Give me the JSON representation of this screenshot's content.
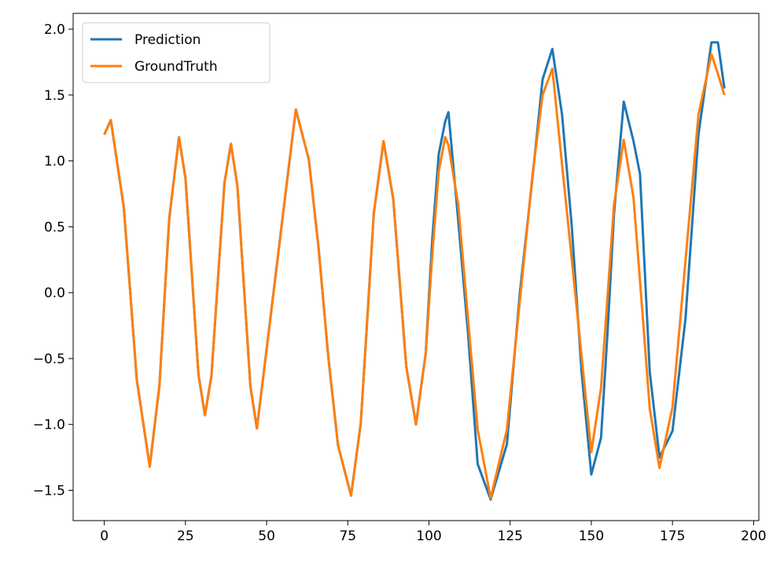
{
  "chart_data": {
    "type": "line",
    "x": [
      0,
      2,
      6,
      8,
      10,
      14,
      17,
      19,
      20,
      23,
      25,
      27,
      29,
      31,
      33,
      35,
      37,
      39,
      41,
      43,
      45,
      47,
      50,
      53,
      56,
      59,
      63,
      66,
      69,
      72,
      76,
      79,
      81,
      83,
      86,
      89,
      91,
      93,
      96,
      99,
      101,
      103,
      105,
      106,
      109,
      112,
      115,
      119,
      124,
      128,
      132,
      135,
      138,
      141,
      144,
      147,
      150,
      153,
      155,
      157,
      160,
      163,
      165,
      168,
      171,
      175,
      179,
      183,
      187,
      189,
      191
    ],
    "series": [
      {
        "name": "Prediction",
        "color": "#1f77b4",
        "values": [
          1.2,
          1.31,
          0.65,
          0.0,
          -0.66,
          -1.32,
          -0.7,
          0.15,
          0.56,
          1.18,
          0.87,
          0.13,
          -0.62,
          -0.93,
          -0.63,
          0.1,
          0.83,
          1.13,
          0.81,
          0.05,
          -0.71,
          -1.03,
          -0.43,
          0.18,
          0.79,
          1.39,
          1.01,
          0.34,
          -0.49,
          -1.16,
          -1.54,
          -0.99,
          -0.2,
          0.6,
          1.15,
          0.71,
          0.08,
          -0.56,
          -1.0,
          -0.46,
          0.4,
          1.05,
          1.3,
          1.37,
          0.55,
          -0.3,
          -1.3,
          -1.57,
          -1.15,
          0.0,
          0.9,
          1.62,
          1.85,
          1.35,
          0.5,
          -0.6,
          -1.38,
          -1.1,
          -0.3,
          0.6,
          1.45,
          1.15,
          0.9,
          -0.6,
          -1.25,
          -1.05,
          -0.2,
          1.2,
          1.9,
          1.9,
          1.55
        ]
      },
      {
        "name": "GroundTruth",
        "color": "#ff7f0e",
        "values": [
          1.2,
          1.31,
          0.65,
          0.0,
          -0.66,
          -1.32,
          -0.7,
          0.15,
          0.56,
          1.18,
          0.87,
          0.13,
          -0.62,
          -0.93,
          -0.63,
          0.1,
          0.83,
          1.13,
          0.81,
          0.05,
          -0.71,
          -1.03,
          -0.43,
          0.18,
          0.79,
          1.39,
          1.01,
          0.34,
          -0.49,
          -1.16,
          -1.54,
          -0.99,
          -0.2,
          0.6,
          1.15,
          0.71,
          0.08,
          -0.56,
          -1.0,
          -0.46,
          0.28,
          0.92,
          1.18,
          1.12,
          0.67,
          -0.19,
          -1.04,
          -1.56,
          -1.04,
          -0.06,
          0.92,
          1.5,
          1.7,
          0.97,
          0.25,
          -0.48,
          -1.21,
          -0.72,
          -0.03,
          0.67,
          1.16,
          0.72,
          0.09,
          -0.88,
          -1.33,
          -0.87,
          0.24,
          1.35,
          1.81,
          1.66,
          1.5
        ]
      }
    ],
    "xlim": [
      -9.6,
      201.6
    ],
    "ylim": [
      -1.73,
      2.12
    ],
    "xticks": [
      0,
      25,
      50,
      75,
      100,
      125,
      150,
      175,
      200
    ],
    "yticks": [
      {
        "value": -1.5,
        "label": "−1.5"
      },
      {
        "value": -1.0,
        "label": "−1.0"
      },
      {
        "value": -0.5,
        "label": "−0.5"
      },
      {
        "value": 0,
        "label": "0.0"
      },
      {
        "value": 0.5,
        "label": "0.5"
      },
      {
        "value": 1.0,
        "label": "1.0"
      },
      {
        "value": 1.5,
        "label": "1.5"
      },
      {
        "value": 2.0,
        "label": "2.0"
      }
    ],
    "legend": "upper left"
  }
}
